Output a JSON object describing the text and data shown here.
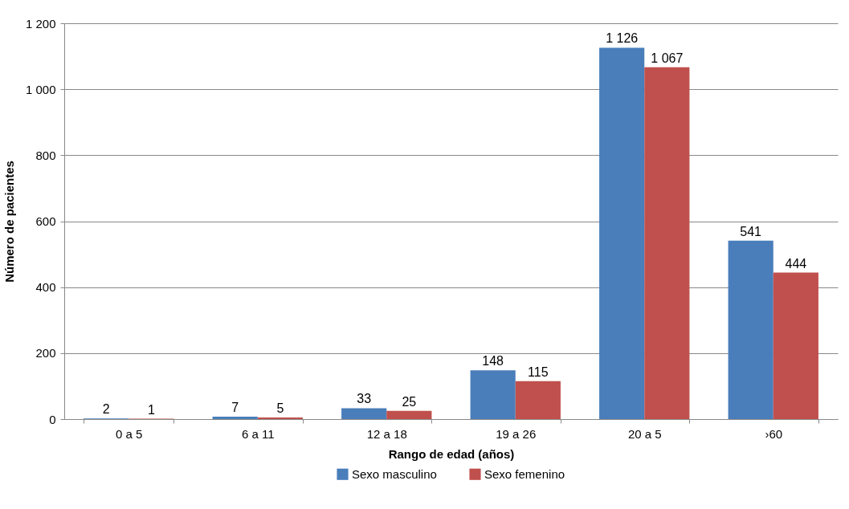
{
  "chart_data": {
    "type": "bar",
    "xlabel": "Rango de edad (años)",
    "ylabel": "Número de pacientes",
    "categories": [
      "0 a 5",
      "6 a 11",
      "12 a 18",
      "19 a 26",
      "20 a 5",
      "›60"
    ],
    "series": [
      {
        "name": "Sexo masculino",
        "color": "#4a7ebb",
        "values": [
          2,
          7,
          33,
          148,
          1126,
          541
        ]
      },
      {
        "name": "Sexo femenino",
        "color": "#c0504d",
        "values": [
          1,
          5,
          25,
          115,
          1067,
          444
        ]
      }
    ],
    "ylim": [
      0,
      1200
    ],
    "yticks": [
      0,
      200,
      400,
      600,
      800,
      {
        "value": 1000,
        "label": "1 000"
      },
      {
        "value": 1200,
        "label": "1 200"
      }
    ],
    "grid": "y",
    "legend": "bottom",
    "data_labels": true
  }
}
